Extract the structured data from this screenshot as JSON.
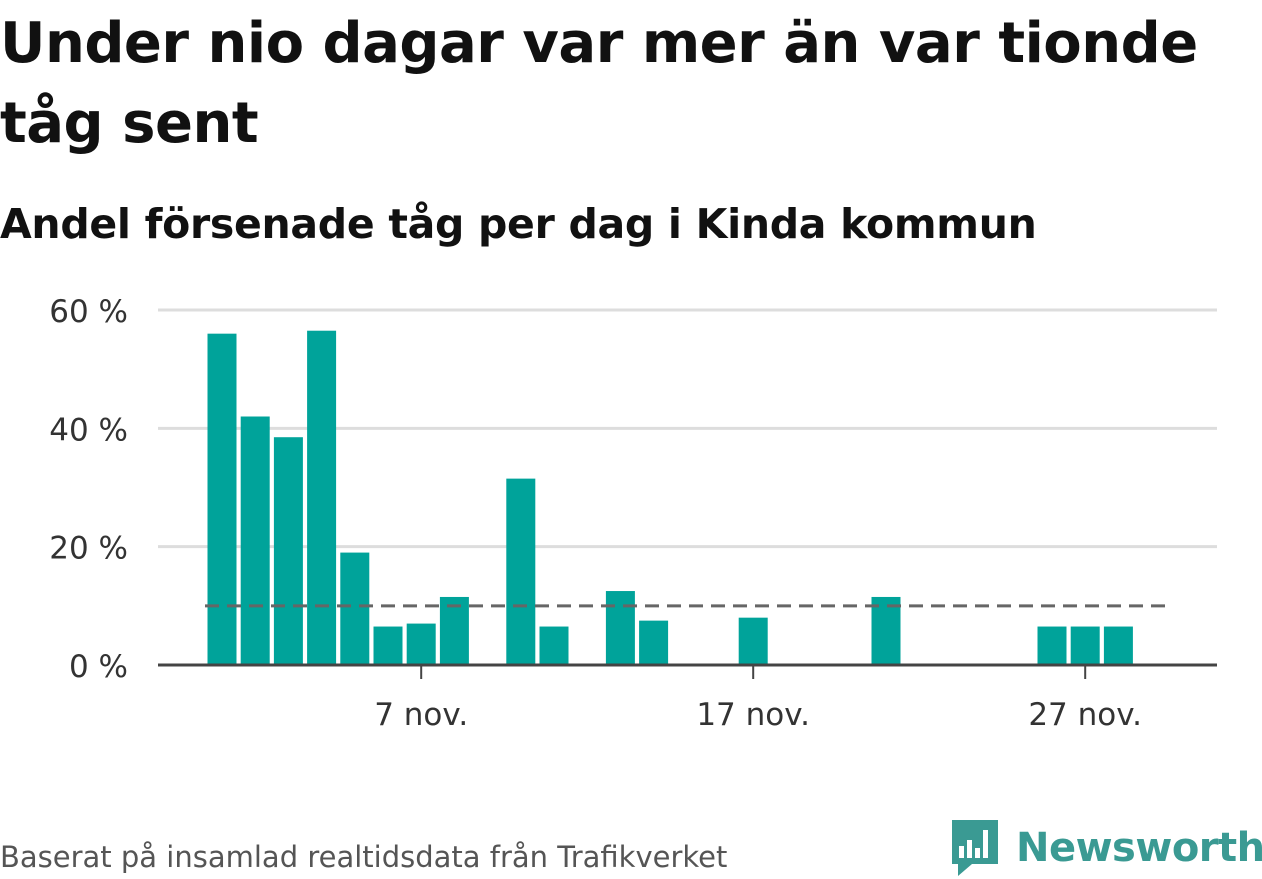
{
  "title": "Under nio dagar var mer än var tionde tåg sent",
  "subtitle": "Andel försenade tåg per dag i Kinda kommun",
  "footer": "Baserat på insamlad realtidsdata från Trafikverket",
  "brand": "Newsworthy",
  "colors": {
    "bar": "#00a39a",
    "reference_line": "#666666",
    "grid": "#dddddd",
    "axis": "#444444",
    "brand": "#3a9a93"
  },
  "chart_data": {
    "type": "bar",
    "x": [
      "1 nov.",
      "2 nov.",
      "3 nov.",
      "4 nov.",
      "5 nov.",
      "6 nov.",
      "7 nov.",
      "8 nov.",
      "9 nov.",
      "10 nov.",
      "11 nov.",
      "12 nov.",
      "13 nov.",
      "14 nov.",
      "15 nov.",
      "16 nov.",
      "17 nov.",
      "18 nov.",
      "19 nov.",
      "20 nov.",
      "21 nov.",
      "22 nov.",
      "23 nov.",
      "24 nov.",
      "25 nov.",
      "26 nov.",
      "27 nov.",
      "28 nov.",
      "29 nov.",
      "30 nov."
    ],
    "values": [
      56,
      42,
      38.5,
      56.5,
      19,
      6.5,
      7,
      11.5,
      0,
      31.5,
      6.5,
      0,
      12.5,
      7.5,
      0,
      0,
      8,
      0,
      0,
      0,
      11.5,
      0,
      0,
      0,
      0,
      6.5,
      6.5,
      6.5,
      0,
      0
    ],
    "reference_line": 10,
    "xtick_labels": [
      "7 nov.",
      "17 nov.",
      "27 nov."
    ],
    "ytick_labels": [
      "0 %",
      "20 %",
      "40 %",
      "60 %"
    ],
    "yticks": [
      0,
      20,
      40,
      60
    ],
    "ylim": [
      0,
      60
    ],
    "grid": true
  }
}
